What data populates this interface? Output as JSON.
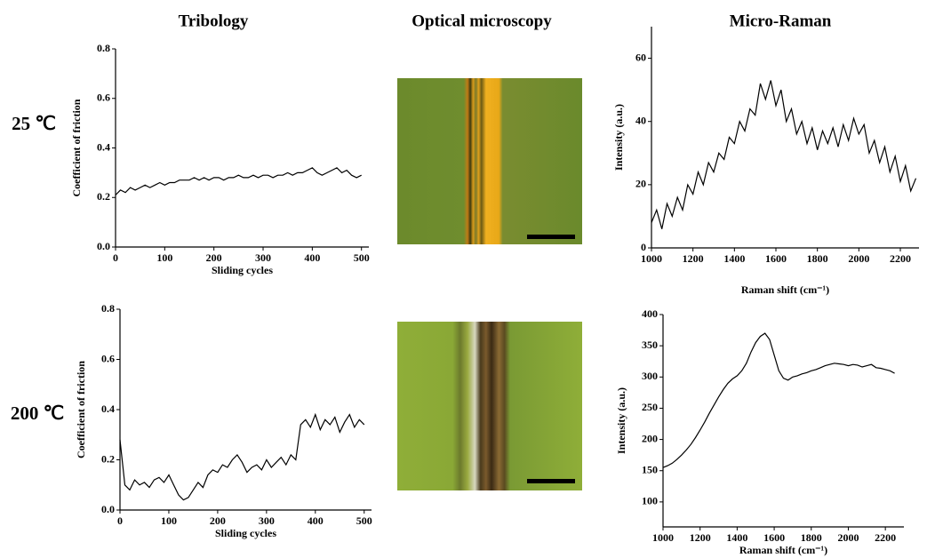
{
  "headers": [
    "Tribology",
    "Optical microscopy",
    "Micro-Raman"
  ],
  "row_labels": [
    "25 ℃",
    "200 ℃"
  ],
  "chart_data": [
    {
      "type": "line",
      "xlabel": "Sliding cycles",
      "ylabel": "Coefficient of friction",
      "color": "#000000",
      "x": [
        0,
        10,
        20,
        30,
        40,
        50,
        60,
        70,
        80,
        90,
        100,
        110,
        120,
        130,
        140,
        150,
        160,
        170,
        180,
        190,
        200,
        210,
        220,
        230,
        240,
        250,
        260,
        270,
        280,
        290,
        300,
        310,
        320,
        330,
        340,
        350,
        360,
        370,
        380,
        390,
        400,
        410,
        420,
        430,
        440,
        450,
        460,
        470,
        480,
        490,
        500
      ],
      "values": [
        0.21,
        0.23,
        0.22,
        0.24,
        0.23,
        0.24,
        0.25,
        0.24,
        0.25,
        0.26,
        0.25,
        0.26,
        0.26,
        0.27,
        0.27,
        0.27,
        0.28,
        0.27,
        0.28,
        0.27,
        0.28,
        0.28,
        0.27,
        0.28,
        0.28,
        0.29,
        0.28,
        0.28,
        0.29,
        0.28,
        0.29,
        0.29,
        0.28,
        0.29,
        0.29,
        0.3,
        0.29,
        0.3,
        0.3,
        0.31,
        0.32,
        0.3,
        0.29,
        0.3,
        0.31,
        0.32,
        0.3,
        0.31,
        0.29,
        0.28,
        0.29
      ],
      "xlim": [
        0,
        515
      ],
      "xticks": [
        0,
        100,
        200,
        300,
        400,
        500
      ],
      "ylim": [
        0,
        0.8
      ],
      "yticks": [
        {
          "value": 0,
          "label": "0.0"
        },
        0.2,
        0.4,
        0.6,
        0.8
      ]
    },
    {
      "type": "line",
      "xlabel": "Sliding cycles",
      "ylabel": "Coefficient of friction",
      "color": "#000000",
      "x": [
        0,
        10,
        20,
        30,
        40,
        50,
        60,
        70,
        80,
        90,
        100,
        110,
        120,
        130,
        140,
        150,
        160,
        170,
        180,
        190,
        200,
        210,
        220,
        230,
        240,
        250,
        260,
        270,
        280,
        290,
        300,
        310,
        320,
        330,
        340,
        350,
        360,
        370,
        380,
        390,
        400,
        410,
        420,
        430,
        440,
        450,
        460,
        470,
        480,
        490,
        500
      ],
      "values": [
        0.28,
        0.1,
        0.08,
        0.12,
        0.1,
        0.11,
        0.09,
        0.12,
        0.13,
        0.11,
        0.14,
        0.1,
        0.06,
        0.04,
        0.05,
        0.08,
        0.11,
        0.09,
        0.14,
        0.16,
        0.15,
        0.18,
        0.17,
        0.2,
        0.22,
        0.19,
        0.15,
        0.17,
        0.18,
        0.16,
        0.2,
        0.17,
        0.19,
        0.21,
        0.18,
        0.22,
        0.2,
        0.34,
        0.36,
        0.33,
        0.38,
        0.32,
        0.36,
        0.34,
        0.37,
        0.31,
        0.35,
        0.38,
        0.33,
        0.36,
        0.34
      ],
      "xlim": [
        0,
        515
      ],
      "xticks": [
        0,
        100,
        200,
        300,
        400,
        500
      ],
      "ylim": [
        0,
        0.8
      ],
      "yticks": [
        {
          "value": 0,
          "label": "0.0"
        },
        0.2,
        0.4,
        0.6,
        0.8
      ]
    },
    {
      "type": "line",
      "xlabel": "Raman shift (cm⁻¹)",
      "ylabel": "Intensity (a.u.)",
      "color": "#000000",
      "x": [
        1000,
        1025,
        1050,
        1075,
        1100,
        1125,
        1150,
        1175,
        1200,
        1225,
        1250,
        1275,
        1300,
        1325,
        1350,
        1375,
        1400,
        1425,
        1450,
        1475,
        1500,
        1525,
        1550,
        1575,
        1600,
        1625,
        1650,
        1675,
        1700,
        1725,
        1750,
        1775,
        1800,
        1825,
        1850,
        1875,
        1900,
        1925,
        1950,
        1975,
        2000,
        2025,
        2050,
        2075,
        2100,
        2125,
        2150,
        2175,
        2200,
        2225,
        2250,
        2275
      ],
      "values": [
        8,
        12,
        6,
        14,
        10,
        16,
        12,
        20,
        17,
        24,
        20,
        27,
        24,
        30,
        28,
        35,
        33,
        40,
        37,
        44,
        42,
        52,
        47,
        53,
        45,
        50,
        40,
        44,
        36,
        40,
        33,
        38,
        31,
        37,
        33,
        38,
        32,
        39,
        34,
        41,
        36,
        39,
        30,
        34,
        27,
        32,
        24,
        29,
        21,
        26,
        18,
        22
      ],
      "xlim": [
        1000,
        2290
      ],
      "xticks": [
        1000,
        1200,
        1400,
        1600,
        1800,
        2000,
        2200
      ],
      "ylim": [
        0,
        70
      ],
      "yticks": [
        0,
        20,
        40,
        60
      ]
    },
    {
      "type": "line",
      "xlabel": "Raman shift (cm⁻¹)",
      "ylabel": "Intensity (a.u.)",
      "color": "#000000",
      "x": [
        1000,
        1025,
        1050,
        1075,
        1100,
        1125,
        1150,
        1175,
        1200,
        1225,
        1250,
        1275,
        1300,
        1325,
        1350,
        1375,
        1400,
        1425,
        1450,
        1475,
        1500,
        1525,
        1550,
        1575,
        1600,
        1625,
        1650,
        1675,
        1700,
        1725,
        1750,
        1775,
        1800,
        1825,
        1850,
        1875,
        1900,
        1925,
        1950,
        1975,
        2000,
        2025,
        2050,
        2075,
        2100,
        2125,
        2150,
        2175,
        2200,
        2225,
        2250
      ],
      "values": [
        155,
        158,
        162,
        168,
        175,
        183,
        192,
        203,
        215,
        228,
        242,
        255,
        268,
        280,
        290,
        297,
        302,
        310,
        322,
        340,
        355,
        365,
        370,
        360,
        335,
        310,
        298,
        295,
        300,
        302,
        305,
        307,
        310,
        312,
        315,
        318,
        320,
        322,
        321,
        320,
        318,
        320,
        319,
        316,
        318,
        320,
        315,
        314,
        312,
        310,
        306
      ],
      "xlim": [
        1000,
        2300
      ],
      "xticks": [
        1000,
        1200,
        1400,
        1600,
        1800,
        2000,
        2200
      ],
      "ylim": [
        60,
        400
      ],
      "yticks": [
        100,
        150,
        200,
        250,
        300,
        350,
        400
      ]
    }
  ]
}
